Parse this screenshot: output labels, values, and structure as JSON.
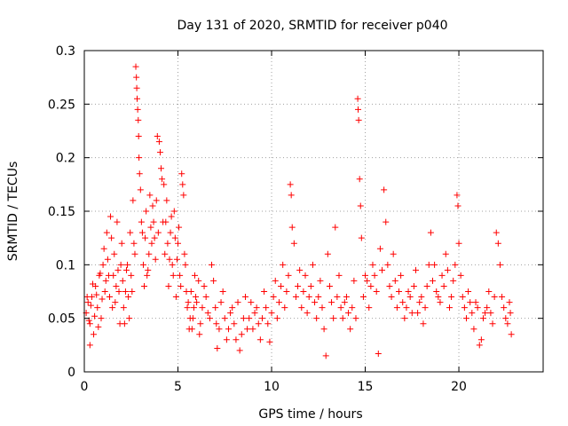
{
  "chart_data": {
    "type": "scatter",
    "title": "Day 131 of 2020, SRMTID for receiver p040",
    "xlabel": "GPS time / hours",
    "ylabel": "SRMTID / TECUs",
    "xlim": [
      0,
      24.5
    ],
    "ylim": [
      0,
      0.3
    ],
    "xticks": [
      0,
      5,
      10,
      15,
      20
    ],
    "yticks": [
      0,
      0.05,
      0.1,
      0.15,
      0.2,
      0.25,
      0.3
    ],
    "xtick_labels": [
      "0",
      "5",
      "10",
      "15",
      "20"
    ],
    "ytick_labels": [
      "0",
      "0.05",
      "0.1",
      "0.15",
      "0.2",
      "0.25",
      "0.3"
    ],
    "grid": true,
    "marker": "+",
    "color": "#ff0000",
    "series": [
      {
        "name": "SRMTID",
        "points": [
          [
            0.1,
            0.055
          ],
          [
            0.2,
            0.065
          ],
          [
            0.3,
            0.045
          ],
          [
            0.4,
            0.07
          ],
          [
            0.5,
            0.035
          ],
          [
            0.6,
            0.08
          ],
          [
            0.7,
            0.06
          ],
          [
            0.8,
            0.09
          ],
          [
            0.9,
            0.05
          ],
          [
            1.0,
            0.1
          ],
          [
            1.1,
            0.075
          ],
          [
            1.2,
            0.13
          ],
          [
            1.3,
            0.09
          ],
          [
            1.4,
            0.145
          ],
          [
            1.5,
            0.06
          ],
          [
            1.6,
            0.11
          ],
          [
            1.7,
            0.08
          ],
          [
            1.8,
            0.095
          ],
          [
            1.9,
            0.045
          ],
          [
            2.0,
            0.12
          ],
          [
            2.1,
            0.06
          ],
          [
            2.2,
            0.075
          ],
          [
            2.3,
            0.1
          ],
          [
            2.4,
            0.05
          ],
          [
            2.5,
            0.09
          ],
          [
            2.6,
            0.16
          ],
          [
            2.7,
            0.11
          ],
          [
            2.75,
            0.285
          ],
          [
            2.78,
            0.275
          ],
          [
            2.8,
            0.265
          ],
          [
            2.82,
            0.255
          ],
          [
            2.85,
            0.245
          ],
          [
            2.88,
            0.235
          ],
          [
            2.9,
            0.22
          ],
          [
            2.92,
            0.2
          ],
          [
            2.95,
            0.185
          ],
          [
            3.0,
            0.17
          ],
          [
            3.1,
            0.13
          ],
          [
            3.2,
            0.08
          ],
          [
            3.3,
            0.15
          ],
          [
            3.4,
            0.095
          ],
          [
            3.5,
            0.165
          ],
          [
            3.6,
            0.12
          ],
          [
            3.7,
            0.14
          ],
          [
            3.8,
            0.105
          ],
          [
            3.9,
            0.22
          ],
          [
            4.0,
            0.215
          ],
          [
            4.05,
            0.205
          ],
          [
            4.1,
            0.19
          ],
          [
            4.15,
            0.18
          ],
          [
            4.2,
            0.14
          ],
          [
            4.3,
            0.11
          ],
          [
            4.4,
            0.16
          ],
          [
            4.5,
            0.08
          ],
          [
            4.6,
            0.13
          ],
          [
            4.7,
            0.1
          ],
          [
            4.8,
            0.15
          ],
          [
            4.9,
            0.07
          ],
          [
            5.0,
            0.12
          ],
          [
            5.1,
            0.09
          ],
          [
            5.2,
            0.185
          ],
          [
            5.25,
            0.175
          ],
          [
            5.3,
            0.165
          ],
          [
            5.4,
            0.1
          ],
          [
            5.5,
            0.06
          ],
          [
            5.6,
            0.04
          ],
          [
            5.7,
            0.075
          ],
          [
            5.8,
            0.05
          ],
          [
            5.9,
            0.09
          ],
          [
            6.0,
            0.065
          ],
          [
            6.2,
            0.045
          ],
          [
            6.4,
            0.08
          ],
          [
            6.6,
            0.055
          ],
          [
            6.8,
            0.1
          ],
          [
            7.0,
            0.06
          ],
          [
            7.2,
            0.04
          ],
          [
            7.4,
            0.075
          ],
          [
            7.6,
            0.03
          ],
          [
            7.8,
            0.055
          ],
          [
            8.0,
            0.045
          ],
          [
            8.2,
            0.065
          ],
          [
            8.4,
            0.035
          ],
          [
            8.6,
            0.07
          ],
          [
            8.8,
            0.05
          ],
          [
            9.0,
            0.04
          ],
          [
            9.2,
            0.06
          ],
          [
            9.4,
            0.03
          ],
          [
            9.6,
            0.075
          ],
          [
            9.8,
            0.045
          ],
          [
            10.0,
            0.055
          ],
          [
            10.2,
            0.085
          ],
          [
            10.4,
            0.065
          ],
          [
            10.6,
            0.1
          ],
          [
            10.8,
            0.075
          ],
          [
            11.0,
            0.175
          ],
          [
            11.05,
            0.165
          ],
          [
            11.1,
            0.135
          ],
          [
            11.2,
            0.12
          ],
          [
            11.4,
            0.08
          ],
          [
            11.6,
            0.06
          ],
          [
            11.8,
            0.09
          ],
          [
            12.0,
            0.07
          ],
          [
            12.2,
            0.1
          ],
          [
            12.4,
            0.05
          ],
          [
            12.6,
            0.085
          ],
          [
            12.8,
            0.04
          ],
          [
            13.0,
            0.11
          ],
          [
            13.2,
            0.065
          ],
          [
            13.4,
            0.135
          ],
          [
            13.6,
            0.09
          ],
          [
            13.8,
            0.05
          ],
          [
            14.0,
            0.07
          ],
          [
            14.2,
            0.04
          ],
          [
            14.4,
            0.085
          ],
          [
            14.6,
            0.255
          ],
          [
            14.62,
            0.245
          ],
          [
            14.65,
            0.235
          ],
          [
            14.7,
            0.18
          ],
          [
            14.75,
            0.155
          ],
          [
            14.8,
            0.125
          ],
          [
            15.0,
            0.09
          ],
          [
            15.2,
            0.06
          ],
          [
            15.4,
            0.1
          ],
          [
            15.6,
            0.075
          ],
          [
            15.8,
            0.115
          ],
          [
            16.0,
            0.17
          ],
          [
            16.1,
            0.14
          ],
          [
            16.3,
            0.08
          ],
          [
            16.5,
            0.11
          ],
          [
            16.7,
            0.06
          ],
          [
            16.9,
            0.09
          ],
          [
            17.1,
            0.05
          ],
          [
            17.3,
            0.075
          ],
          [
            17.5,
            0.055
          ],
          [
            17.7,
            0.095
          ],
          [
            17.9,
            0.065
          ],
          [
            18.1,
            0.045
          ],
          [
            18.3,
            0.08
          ],
          [
            18.5,
            0.13
          ],
          [
            18.7,
            0.1
          ],
          [
            18.9,
            0.07
          ],
          [
            19.1,
            0.09
          ],
          [
            19.3,
            0.11
          ],
          [
            19.5,
            0.06
          ],
          [
            19.7,
            0.085
          ],
          [
            19.9,
            0.165
          ],
          [
            19.95,
            0.155
          ],
          [
            20.0,
            0.12
          ],
          [
            20.2,
            0.07
          ],
          [
            20.4,
            0.05
          ],
          [
            20.6,
            0.065
          ],
          [
            20.8,
            0.04
          ],
          [
            21.0,
            0.06
          ],
          [
            21.2,
            0.03
          ],
          [
            21.4,
            0.055
          ],
          [
            21.6,
            0.075
          ],
          [
            21.8,
            0.045
          ],
          [
            22.0,
            0.13
          ],
          [
            22.1,
            0.12
          ],
          [
            22.3,
            0.07
          ],
          [
            22.5,
            0.05
          ],
          [
            22.7,
            0.065
          ],
          [
            22.8,
            0.035
          ],
          [
            0.3,
            0.025
          ],
          [
            8.3,
            0.02
          ],
          [
            12.9,
            0.015
          ],
          [
            15.7,
            0.017
          ],
          [
            21.1,
            0.025
          ],
          [
            7.1,
            0.022
          ],
          [
            9.9,
            0.028
          ],
          [
            0.15,
            0.07
          ],
          [
            0.25,
            0.048
          ],
          [
            0.35,
            0.062
          ],
          [
            0.45,
            0.082
          ],
          [
            0.55,
            0.052
          ],
          [
            0.65,
            0.072
          ],
          [
            0.75,
            0.042
          ],
          [
            0.85,
            0.092
          ],
          [
            0.95,
            0.068
          ],
          [
            1.05,
            0.115
          ],
          [
            1.15,
            0.085
          ],
          [
            1.25,
            0.105
          ],
          [
            1.35,
            0.07
          ],
          [
            1.45,
            0.125
          ],
          [
            1.55,
            0.09
          ],
          [
            1.65,
            0.065
          ],
          [
            1.75,
            0.14
          ],
          [
            1.85,
            0.075
          ],
          [
            1.95,
            0.1
          ],
          [
            2.05,
            0.085
          ],
          [
            2.15,
            0.045
          ],
          [
            2.25,
            0.095
          ],
          [
            2.35,
            0.07
          ],
          [
            2.45,
            0.13
          ],
          [
            2.55,
            0.075
          ],
          [
            2.65,
            0.12
          ],
          [
            3.05,
            0.14
          ],
          [
            3.15,
            0.1
          ],
          [
            3.25,
            0.125
          ],
          [
            3.35,
            0.09
          ],
          [
            3.45,
            0.11
          ],
          [
            3.55,
            0.135
          ],
          [
            3.65,
            0.155
          ],
          [
            3.75,
            0.125
          ],
          [
            3.85,
            0.16
          ],
          [
            3.95,
            0.13
          ],
          [
            4.25,
            0.175
          ],
          [
            4.35,
            0.14
          ],
          [
            4.45,
            0.12
          ],
          [
            4.55,
            0.105
          ],
          [
            4.65,
            0.145
          ],
          [
            4.75,
            0.09
          ],
          [
            4.85,
            0.125
          ],
          [
            4.95,
            0.105
          ],
          [
            5.05,
            0.135
          ],
          [
            5.15,
            0.08
          ],
          [
            5.35,
            0.11
          ],
          [
            5.45,
            0.075
          ],
          [
            5.55,
            0.065
          ],
          [
            5.65,
            0.05
          ],
          [
            5.75,
            0.04
          ],
          [
            5.85,
            0.06
          ],
          [
            5.95,
            0.07
          ],
          [
            6.1,
            0.085
          ],
          [
            6.3,
            0.06
          ],
          [
            6.5,
            0.07
          ],
          [
            6.7,
            0.05
          ],
          [
            6.9,
            0.085
          ],
          [
            7.05,
            0.045
          ],
          [
            7.3,
            0.065
          ],
          [
            7.5,
            0.05
          ],
          [
            7.7,
            0.04
          ],
          [
            7.9,
            0.06
          ],
          [
            8.1,
            0.03
          ],
          [
            8.5,
            0.05
          ],
          [
            8.7,
            0.04
          ],
          [
            8.9,
            0.065
          ],
          [
            9.1,
            0.055
          ],
          [
            9.3,
            0.045
          ],
          [
            9.5,
            0.05
          ],
          [
            9.7,
            0.06
          ],
          [
            10.1,
            0.07
          ],
          [
            10.3,
            0.05
          ],
          [
            10.5,
            0.08
          ],
          [
            10.7,
            0.06
          ],
          [
            10.9,
            0.09
          ],
          [
            11.3,
            0.07
          ],
          [
            11.5,
            0.095
          ],
          [
            11.7,
            0.075
          ],
          [
            11.9,
            0.055
          ],
          [
            12.1,
            0.08
          ],
          [
            12.3,
            0.065
          ],
          [
            12.5,
            0.07
          ],
          [
            12.7,
            0.06
          ],
          [
            13.1,
            0.08
          ],
          [
            13.3,
            0.05
          ],
          [
            13.5,
            0.07
          ],
          [
            13.7,
            0.06
          ],
          [
            13.9,
            0.065
          ],
          [
            14.1,
            0.055
          ],
          [
            14.3,
            0.06
          ],
          [
            14.5,
            0.05
          ],
          [
            14.9,
            0.07
          ],
          [
            15.1,
            0.085
          ],
          [
            15.3,
            0.08
          ],
          [
            15.5,
            0.09
          ],
          [
            15.9,
            0.095
          ],
          [
            16.2,
            0.1
          ],
          [
            16.4,
            0.07
          ],
          [
            16.6,
            0.085
          ],
          [
            16.8,
            0.075
          ],
          [
            17.0,
            0.065
          ],
          [
            17.2,
            0.06
          ],
          [
            17.4,
            0.07
          ],
          [
            17.6,
            0.08
          ],
          [
            17.8,
            0.055
          ],
          [
            18.0,
            0.07
          ],
          [
            18.2,
            0.06
          ],
          [
            18.4,
            0.1
          ],
          [
            18.6,
            0.085
          ],
          [
            18.8,
            0.075
          ],
          [
            19.0,
            0.065
          ],
          [
            19.2,
            0.08
          ],
          [
            19.4,
            0.095
          ],
          [
            19.6,
            0.07
          ],
          [
            19.8,
            0.1
          ],
          [
            20.1,
            0.09
          ],
          [
            20.3,
            0.06
          ],
          [
            20.5,
            0.075
          ],
          [
            20.7,
            0.055
          ],
          [
            20.9,
            0.065
          ],
          [
            21.3,
            0.05
          ],
          [
            21.5,
            0.06
          ],
          [
            21.7,
            0.055
          ],
          [
            21.9,
            0.07
          ],
          [
            22.2,
            0.1
          ],
          [
            22.4,
            0.06
          ],
          [
            22.6,
            0.045
          ],
          [
            22.75,
            0.055
          ],
          [
            6.15,
            0.035
          ]
        ]
      }
    ]
  }
}
